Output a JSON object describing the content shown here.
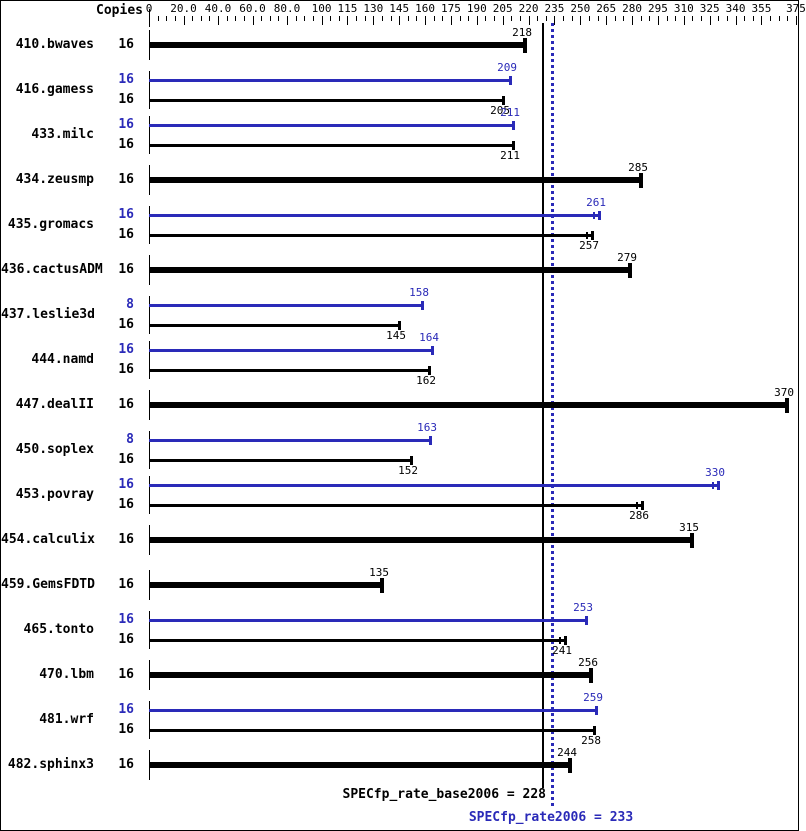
{
  "chart_data": {
    "type": "bar",
    "orientation": "horizontal",
    "title": "",
    "copies_header": "Copies",
    "colors": {
      "base": "#000000",
      "peak": "#2a2ab8",
      "background": "#ffffff"
    },
    "x_axis": {
      "min": 0,
      "max": 375,
      "minor_tick_step": 5,
      "major_ticks": [
        0,
        20,
        40,
        60,
        80,
        100,
        115,
        130,
        145,
        160,
        175,
        190,
        205,
        220,
        235,
        250,
        265,
        280,
        295,
        310,
        325,
        340,
        355,
        375
      ],
      "tick_labels": [
        "0",
        "20.0",
        "40.0",
        "60.0",
        "80.0",
        "100",
        "115",
        "130",
        "145",
        "160",
        "175",
        "190",
        "205",
        "220",
        "235",
        "250",
        "265",
        "280",
        "295",
        "310",
        "325",
        "340",
        "355",
        "375"
      ]
    },
    "benchmarks": [
      {
        "name": "410.bwaves",
        "bars": [
          {
            "kind": "basepeak",
            "copies": 16,
            "value": 218,
            "err": false
          }
        ]
      },
      {
        "name": "416.gamess",
        "bars": [
          {
            "kind": "peak",
            "copies": 16,
            "value": 209,
            "err": false
          },
          {
            "kind": "base",
            "copies": 16,
            "value": 205,
            "err": false
          }
        ]
      },
      {
        "name": "433.milc",
        "bars": [
          {
            "kind": "peak",
            "copies": 16,
            "value": 211,
            "err": false
          },
          {
            "kind": "base",
            "copies": 16,
            "value": 211,
            "err": false
          }
        ]
      },
      {
        "name": "434.zeusmp",
        "bars": [
          {
            "kind": "basepeak",
            "copies": 16,
            "value": 285,
            "err": false
          }
        ]
      },
      {
        "name": "435.gromacs",
        "bars": [
          {
            "kind": "peak",
            "copies": 16,
            "value": 261,
            "err": true
          },
          {
            "kind": "base",
            "copies": 16,
            "value": 257,
            "err": true
          }
        ]
      },
      {
        "name": "436.cactusADM",
        "bars": [
          {
            "kind": "basepeak",
            "copies": 16,
            "value": 279,
            "err": false
          }
        ]
      },
      {
        "name": "437.leslie3d",
        "bars": [
          {
            "kind": "peak",
            "copies": 8,
            "value": 158,
            "err": false
          },
          {
            "kind": "base",
            "copies": 16,
            "value": 145,
            "err": false
          }
        ]
      },
      {
        "name": "444.namd",
        "bars": [
          {
            "kind": "peak",
            "copies": 16,
            "value": 164,
            "err": false
          },
          {
            "kind": "base",
            "copies": 16,
            "value": 162,
            "err": false
          }
        ]
      },
      {
        "name": "447.dealII",
        "bars": [
          {
            "kind": "basepeak",
            "copies": 16,
            "value": 370,
            "err": false
          }
        ]
      },
      {
        "name": "450.soplex",
        "bars": [
          {
            "kind": "peak",
            "copies": 8,
            "value": 163,
            "err": false
          },
          {
            "kind": "base",
            "copies": 16,
            "value": 152,
            "err": false
          }
        ]
      },
      {
        "name": "453.povray",
        "bars": [
          {
            "kind": "peak",
            "copies": 16,
            "value": 330,
            "err": true
          },
          {
            "kind": "base",
            "copies": 16,
            "value": 286,
            "err": true
          }
        ]
      },
      {
        "name": "454.calculix",
        "bars": [
          {
            "kind": "basepeak",
            "copies": 16,
            "value": 315,
            "err": false
          }
        ]
      },
      {
        "name": "459.GemsFDTD",
        "bars": [
          {
            "kind": "basepeak",
            "copies": 16,
            "value": 135,
            "err": false
          }
        ]
      },
      {
        "name": "465.tonto",
        "bars": [
          {
            "kind": "peak",
            "copies": 16,
            "value": 253,
            "err": false
          },
          {
            "kind": "base",
            "copies": 16,
            "value": 241,
            "err": true
          }
        ]
      },
      {
        "name": "470.lbm",
        "bars": [
          {
            "kind": "basepeak",
            "copies": 16,
            "value": 256,
            "err": false
          }
        ]
      },
      {
        "name": "481.wrf",
        "bars": [
          {
            "kind": "peak",
            "copies": 16,
            "value": 259,
            "err": false
          },
          {
            "kind": "base",
            "copies": 16,
            "value": 258,
            "err": false
          }
        ]
      },
      {
        "name": "482.sphinx3",
        "bars": [
          {
            "kind": "basepeak",
            "copies": 16,
            "value": 244,
            "err": false
          }
        ]
      }
    ],
    "reference_lines": [
      {
        "label": "SPECfp_rate_base2006 = 228",
        "value": 228,
        "style": "solid",
        "color": "#000000"
      },
      {
        "label": "SPECfp_rate2006 = 233",
        "value": 233,
        "style": "dotted",
        "color": "#2a2ab8"
      }
    ]
  }
}
